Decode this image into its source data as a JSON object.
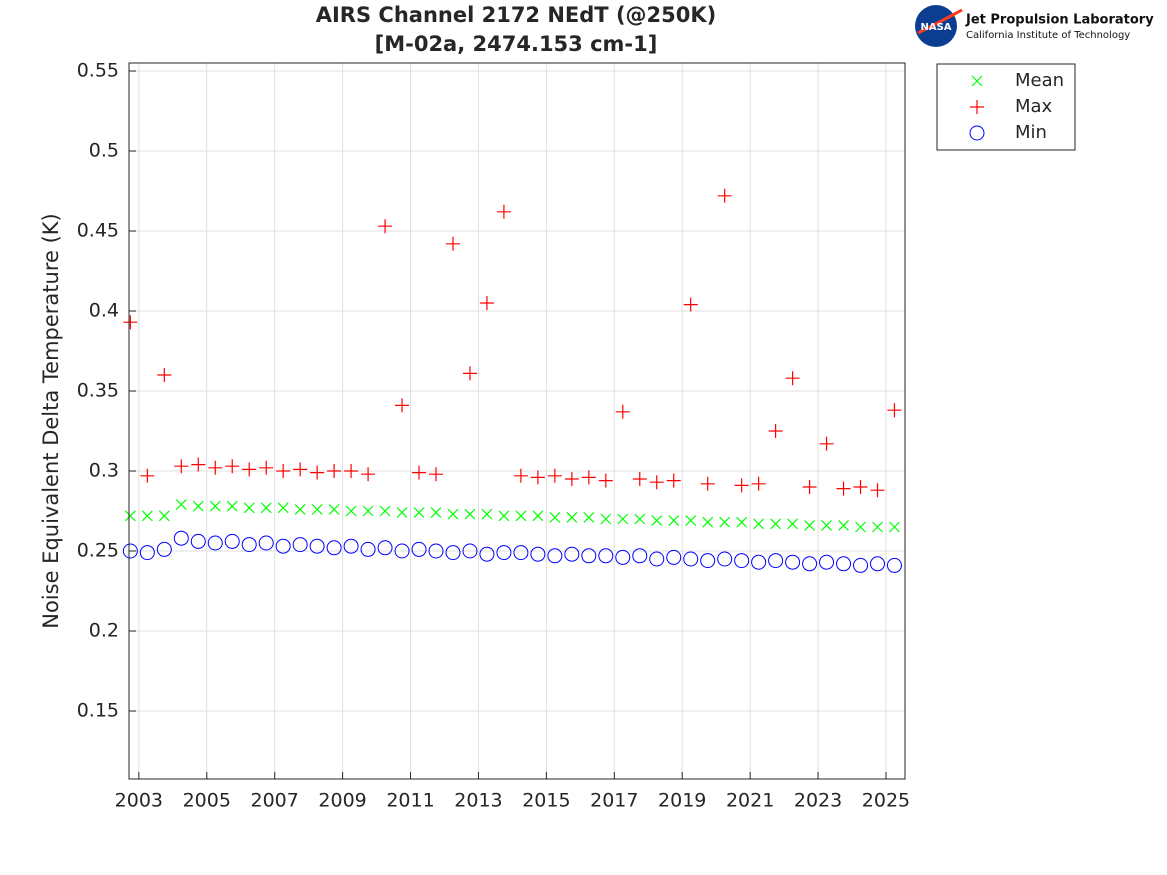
{
  "chart_data": {
    "type": "scatter",
    "title": "AIRS Channel 2172 NEdT (@250K)",
    "subtitle": "[M-02a, 2474.153 cm-1]",
    "y_label": "Noise Equivalent Delta Temperature (K)",
    "x": [
      2002.75,
      2003.25,
      2003.75,
      2004.25,
      2004.75,
      2005.25,
      2005.75,
      2006.25,
      2006.75,
      2007.25,
      2007.75,
      2008.25,
      2008.75,
      2009.25,
      2009.75,
      2010.25,
      2010.75,
      2011.25,
      2011.75,
      2012.25,
      2012.75,
      2013.25,
      2013.75,
      2014.25,
      2014.75,
      2015.25,
      2015.75,
      2016.25,
      2016.75,
      2017.25,
      2017.75,
      2018.25,
      2018.75,
      2019.25,
      2019.75,
      2020.25,
      2020.75,
      2021.25,
      2021.75,
      2022.25,
      2022.75,
      2023.25,
      2023.75,
      2024.25,
      2024.75,
      2025.25
    ],
    "series": [
      {
        "name": "Mean",
        "color": "#00ff00",
        "marker": "x",
        "values": [
          0.272,
          0.272,
          0.272,
          0.279,
          0.278,
          0.278,
          0.278,
          0.277,
          0.277,
          0.277,
          0.276,
          0.276,
          0.276,
          0.275,
          0.275,
          0.275,
          0.274,
          0.274,
          0.274,
          0.273,
          0.273,
          0.273,
          0.272,
          0.272,
          0.272,
          0.271,
          0.271,
          0.271,
          0.27,
          0.27,
          0.27,
          0.269,
          0.269,
          0.269,
          0.268,
          0.268,
          0.268,
          0.267,
          0.267,
          0.267,
          0.266,
          0.266,
          0.266,
          0.265,
          0.265,
          0.265
        ]
      },
      {
        "name": "Max",
        "color": "#ff0000",
        "marker": "+",
        "values": [
          0.393,
          0.297,
          0.36,
          0.303,
          0.304,
          0.302,
          0.303,
          0.301,
          0.302,
          0.3,
          0.301,
          0.299,
          0.3,
          0.3,
          0.298,
          0.453,
          0.341,
          0.299,
          0.298,
          0.442,
          0.361,
          0.405,
          0.462,
          0.297,
          0.296,
          0.297,
          0.295,
          0.296,
          0.294,
          0.337,
          0.295,
          0.293,
          0.294,
          0.404,
          0.292,
          0.472,
          0.291,
          0.292,
          0.325,
          0.358,
          0.29,
          0.317,
          0.289,
          0.29,
          0.288,
          0.338
        ]
      },
      {
        "name": "Min",
        "color": "#0000ff",
        "marker": "o",
        "values": [
          0.25,
          0.249,
          0.251,
          0.258,
          0.256,
          0.255,
          0.256,
          0.254,
          0.255,
          0.253,
          0.254,
          0.253,
          0.252,
          0.253,
          0.251,
          0.252,
          0.25,
          0.251,
          0.25,
          0.249,
          0.25,
          0.248,
          0.249,
          0.249,
          0.248,
          0.247,
          0.248,
          0.247,
          0.247,
          0.246,
          0.247,
          0.245,
          0.246,
          0.245,
          0.244,
          0.245,
          0.244,
          0.243,
          0.244,
          0.243,
          0.242,
          0.243,
          0.242,
          0.241,
          0.242,
          0.241
        ]
      }
    ],
    "xlim": [
      2002.71,
      2025.56
    ],
    "ylim": [
      0.1075,
      0.555
    ],
    "xticks": [
      2003,
      2005,
      2007,
      2009,
      2011,
      2013,
      2015,
      2017,
      2019,
      2021,
      2023,
      2025
    ],
    "yticks": [
      0.15,
      0.2,
      0.25,
      0.3,
      0.35,
      0.4,
      0.45,
      0.5,
      0.55
    ],
    "grid": true,
    "legend": "outside-upper-right"
  },
  "logo": {
    "badge": "NASA",
    "name": "Jet Propulsion Laboratory",
    "subtitle": "California Institute of Technology"
  }
}
